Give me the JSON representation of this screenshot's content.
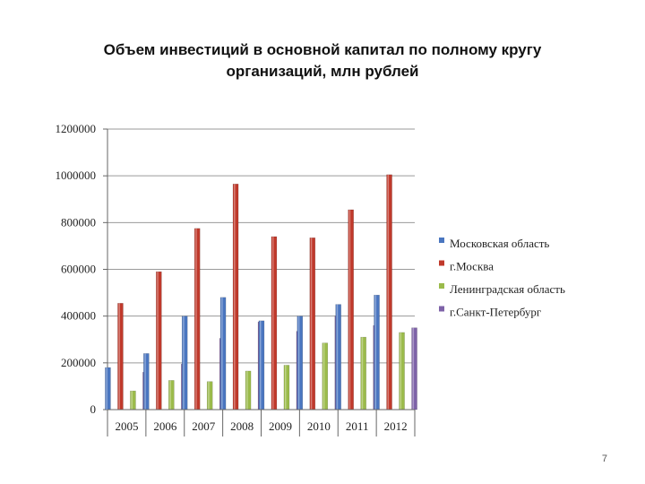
{
  "slide": {
    "title_line1": "Объем инвестиций в основной капитал по полному кругу",
    "title_line2": "организаций, млн рублей",
    "page_number": "7"
  },
  "chart_data": {
    "type": "bar",
    "categories": [
      "2005",
      "2006",
      "2007",
      "2008",
      "2009",
      "2010",
      "2011",
      "2012"
    ],
    "series": [
      {
        "name": "Московская область",
        "color": "#4a76c0",
        "values": [
          180000,
          240000,
          400000,
          480000,
          380000,
          400000,
          450000,
          490000
        ]
      },
      {
        "name": "г.Москва",
        "color": "#c0392b",
        "values": [
          455000,
          590000,
          775000,
          965000,
          740000,
          735000,
          855000,
          1005000
        ]
      },
      {
        "name": "Ленинградская область",
        "color": "#9bbb4b",
        "values": [
          80000,
          125000,
          120000,
          165000,
          190000,
          285000,
          310000,
          330000
        ]
      },
      {
        "name": "г.Санкт-Петербург",
        "color": "#7e62a8",
        "values": [
          160000,
          195000,
          305000,
          375000,
          335000,
          400000,
          360000,
          350000
        ]
      }
    ],
    "yticks": [
      "0",
      "200000",
      "400000",
      "600000",
      "800000",
      "1000000",
      "1200000"
    ],
    "ylim": [
      0,
      1200000
    ],
    "grid": true,
    "legend_position": "right"
  }
}
